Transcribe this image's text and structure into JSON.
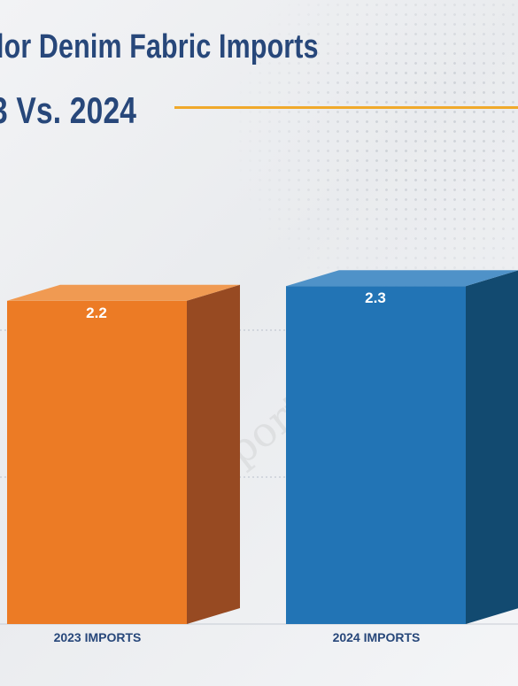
{
  "title_line1": "lor Denim Fabric Imports",
  "title_line2": "3 Vs. 2024",
  "colors": {
    "title": "#27477a",
    "accent_rule": "#f0a92b",
    "bar_2023": "#ec7b25",
    "bar_2024": "#2274b5"
  },
  "chart_data": {
    "type": "bar",
    "categories": [
      "2023 IMPORTS",
      "2024 IMPORTS"
    ],
    "values": [
      2.2,
      2.3
    ],
    "data_labels": [
      "2.2",
      "2.3"
    ],
    "style": "3d",
    "grid": true,
    "ylim": [
      0,
      3.3
    ]
  }
}
